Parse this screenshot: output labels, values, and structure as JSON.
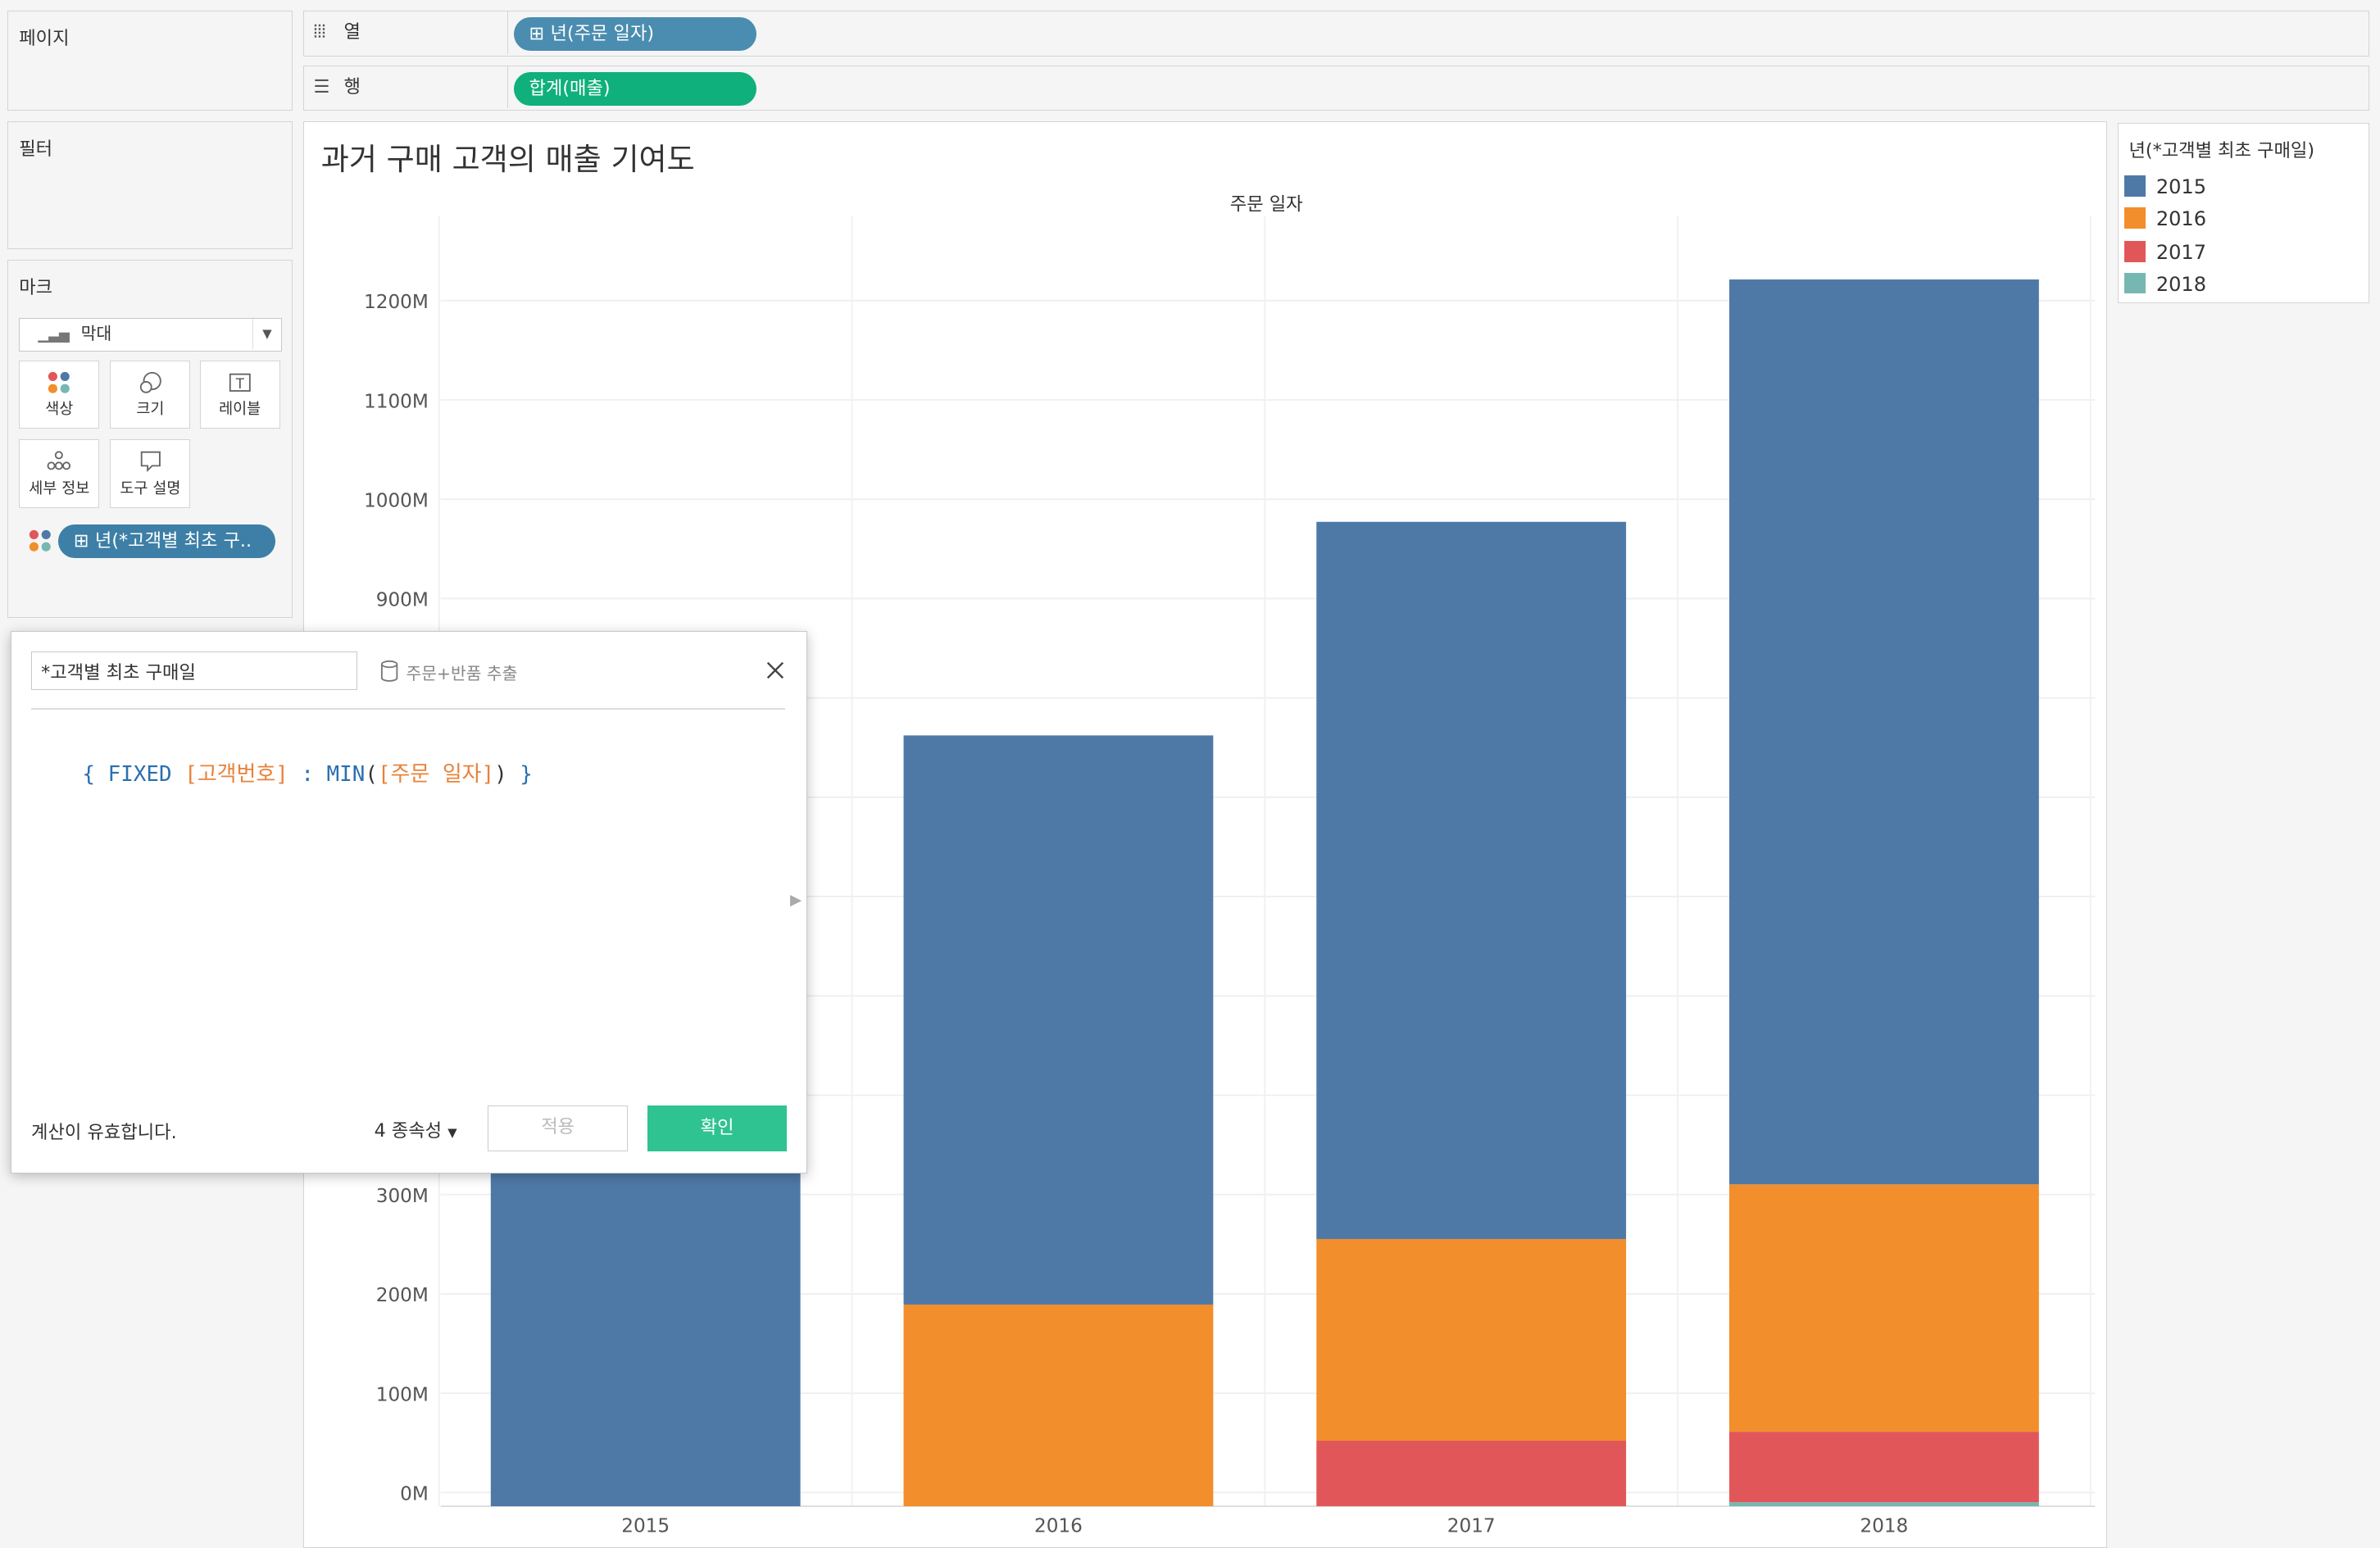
{
  "pages_panel": {
    "title": "페이지"
  },
  "columns_shelf": {
    "label": "열",
    "pill": "년(주문 일자)"
  },
  "rows_shelf": {
    "label": "행",
    "pill": "합계(매출)"
  },
  "filters_panel": {
    "title": "필터"
  },
  "marks_panel": {
    "title": "마크",
    "mark_type": "막대",
    "buttons": {
      "color": "색상",
      "size": "크기",
      "label": "레이블",
      "detail": "세부 정보",
      "tooltip": "도구 설명"
    },
    "color_pill": "년(*고객별 최초 구.."
  },
  "viz": {
    "title": "과거 구매 고객의 매출 기여도"
  },
  "legend": {
    "title": "년(*고객별 최초 구매일)",
    "items": [
      {
        "label": "2015",
        "color": "#4e79a7"
      },
      {
        "label": "2016",
        "color": "#f28e2b"
      },
      {
        "label": "2017",
        "color": "#e15759"
      },
      {
        "label": "2018",
        "color": "#76b7b2"
      }
    ]
  },
  "calc_dialog": {
    "name": "*고객별 최초 구매일",
    "datasource": "주문+반품 추출",
    "formula": {
      "open": "{ ",
      "fixed": "FIXED",
      "field1": "[고객번호]",
      "colon": " : ",
      "func": "MIN",
      "paren_open": "(",
      "field2": "[주문 일자]",
      "paren_close": ")",
      "close": " }"
    },
    "status": "계산이 유효합니다.",
    "dependencies": "4 종속성",
    "apply": "적용",
    "ok": "확인"
  },
  "chart_data": {
    "type": "bar",
    "stacked": true,
    "title": "주문 일자",
    "xlabel": "",
    "ylabel": "",
    "categories": [
      "2015",
      "2016",
      "2017",
      "2018"
    ],
    "series": [
      {
        "name": "2015",
        "color": "#4e79a7",
        "values": [
          470,
          573,
          722,
          911
        ]
      },
      {
        "name": "2016",
        "color": "#f28e2b",
        "values": [
          0,
          203,
          203,
          249
        ]
      },
      {
        "name": "2017",
        "color": "#e15759",
        "values": [
          0,
          0,
          66,
          71
        ]
      },
      {
        "name": "2018",
        "color": "#76b7b2",
        "values": [
          0,
          0,
          0,
          4
        ]
      }
    ],
    "ylim": [
      0,
      1300
    ],
    "yticks": [
      "0M",
      "100M",
      "200M",
      "300M",
      "400M",
      "500M",
      "600M",
      "700M",
      "800M",
      "900M",
      "1000M",
      "1100M",
      "1200M"
    ],
    "grid": true,
    "legend": "right"
  }
}
